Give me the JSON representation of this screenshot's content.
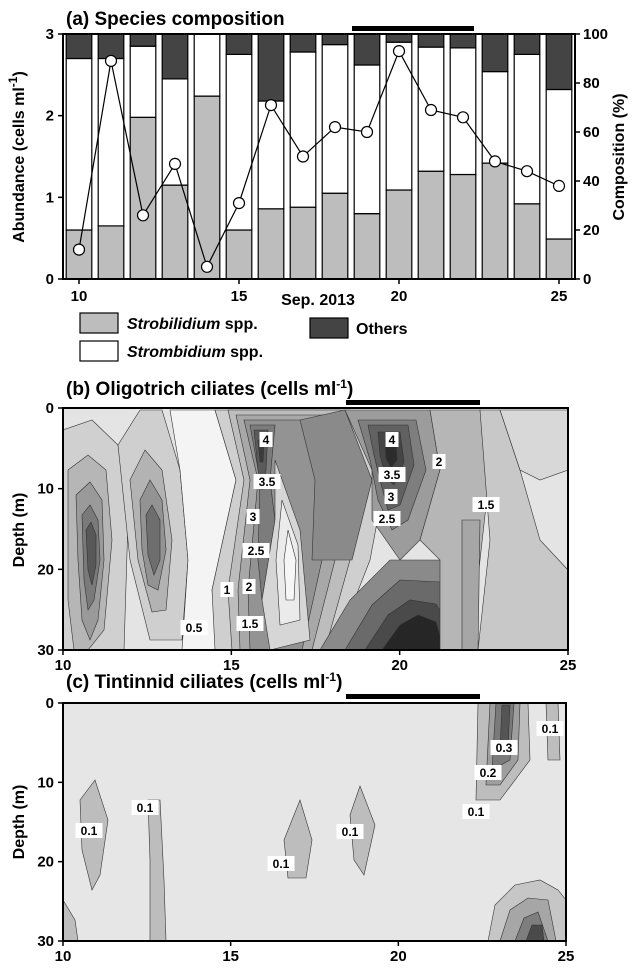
{
  "chart_data": [
    {
      "id": "a",
      "type": "bar",
      "title": "(a) Species composition",
      "xlabel": "Sep. 2013",
      "ylabel": "Abundance (cells ml",
      "ylabel_sup": "-1",
      "ylabel_end": ")",
      "y2label": "Composition (%)",
      "xlim": [
        9.5,
        25.5
      ],
      "ylim": [
        0,
        3
      ],
      "y2lim": [
        0,
        100
      ],
      "xticks": [
        10,
        15,
        20,
        25
      ],
      "yticks": [
        0,
        1,
        2,
        3
      ],
      "y2ticks": [
        0,
        20,
        40,
        60,
        80,
        100
      ],
      "days": [
        10,
        11,
        12,
        13,
        14,
        15,
        16,
        17,
        18,
        19,
        20,
        21,
        22,
        23,
        24,
        25
      ],
      "series": [
        {
          "name": "Strobilidium spp.",
          "color": "#bdbdbd",
          "values": [
            0.6,
            0.65,
            1.98,
            1.15,
            2.24,
            0.6,
            0.86,
            0.88,
            1.05,
            0.8,
            1.09,
            1.32,
            1.28,
            1.42,
            0.92,
            0.49
          ]
        },
        {
          "name": "Strombidium spp.",
          "color": "#ffffff",
          "values": [
            2.1,
            2.05,
            0.87,
            1.3,
            0.76,
            2.15,
            1.32,
            1.9,
            1.82,
            1.82,
            1.81,
            1.52,
            1.55,
            1.12,
            1.83,
            1.83
          ]
        },
        {
          "name": "Others",
          "color": "#444444",
          "values": [
            0.3,
            0.3,
            0.15,
            0.55,
            0.0,
            0.25,
            0.82,
            0.22,
            0.13,
            0.38,
            0.1,
            0.16,
            0.17,
            0.46,
            0.25,
            0.68
          ]
        }
      ],
      "composition_line": {
        "name": "Composition",
        "values": [
          12,
          89,
          26,
          47,
          5,
          31,
          71,
          50,
          62,
          60,
          93,
          69,
          66,
          48,
          44,
          38
        ]
      },
      "bar_marker": [
        18.5,
        22.5
      ],
      "legend": {
        "items": [
          "Strobilidium spp.",
          "Strombidium spp.",
          "Others"
        ],
        "item_italic": [
          "Strobilidium",
          "Strombidium",
          ""
        ],
        "item_suffix": [
          " spp.",
          " spp.",
          ""
        ]
      }
    },
    {
      "id": "b",
      "type": "contour",
      "title": "(b) Oligotrich ciliates (cells ml",
      "title_sup": "-1",
      "title_end": ")",
      "ylabel": "Depth (m)",
      "xlim": [
        10,
        25
      ],
      "ylim": [
        30,
        0
      ],
      "xticks": [
        10,
        15,
        20,
        25
      ],
      "yticks": [
        0,
        10,
        20,
        30
      ],
      "bar_marker": [
        18.5,
        22.5
      ],
      "contour_levels": [
        0.5,
        1,
        1.5,
        2,
        2.5,
        3,
        3.5,
        4
      ],
      "contour_labels": [
        "4",
        "3.5",
        "3",
        "2.5",
        "2",
        "1.5",
        "1",
        "0.5",
        "4",
        "3.5",
        "3",
        "2.5",
        "2",
        "1.5"
      ]
    },
    {
      "id": "c",
      "type": "contour",
      "title": "(c) Tintinnid ciliates (cells ml",
      "title_sup": "-1",
      "title_end": ")",
      "ylabel": "Depth (m)",
      "xlim": [
        10,
        25
      ],
      "ylim": [
        30,
        0
      ],
      "xticks": [
        10,
        15,
        20,
        25
      ],
      "yticks": [
        0,
        10,
        20,
        30
      ],
      "bar_marker": [
        18.5,
        22.5
      ],
      "contour_levels": [
        0.1,
        0.2,
        0.3
      ],
      "contour_labels": [
        "0.1",
        "0.1",
        "0.1",
        "0.1",
        "0.3",
        "0.2",
        "0.1",
        "0.1"
      ]
    }
  ]
}
